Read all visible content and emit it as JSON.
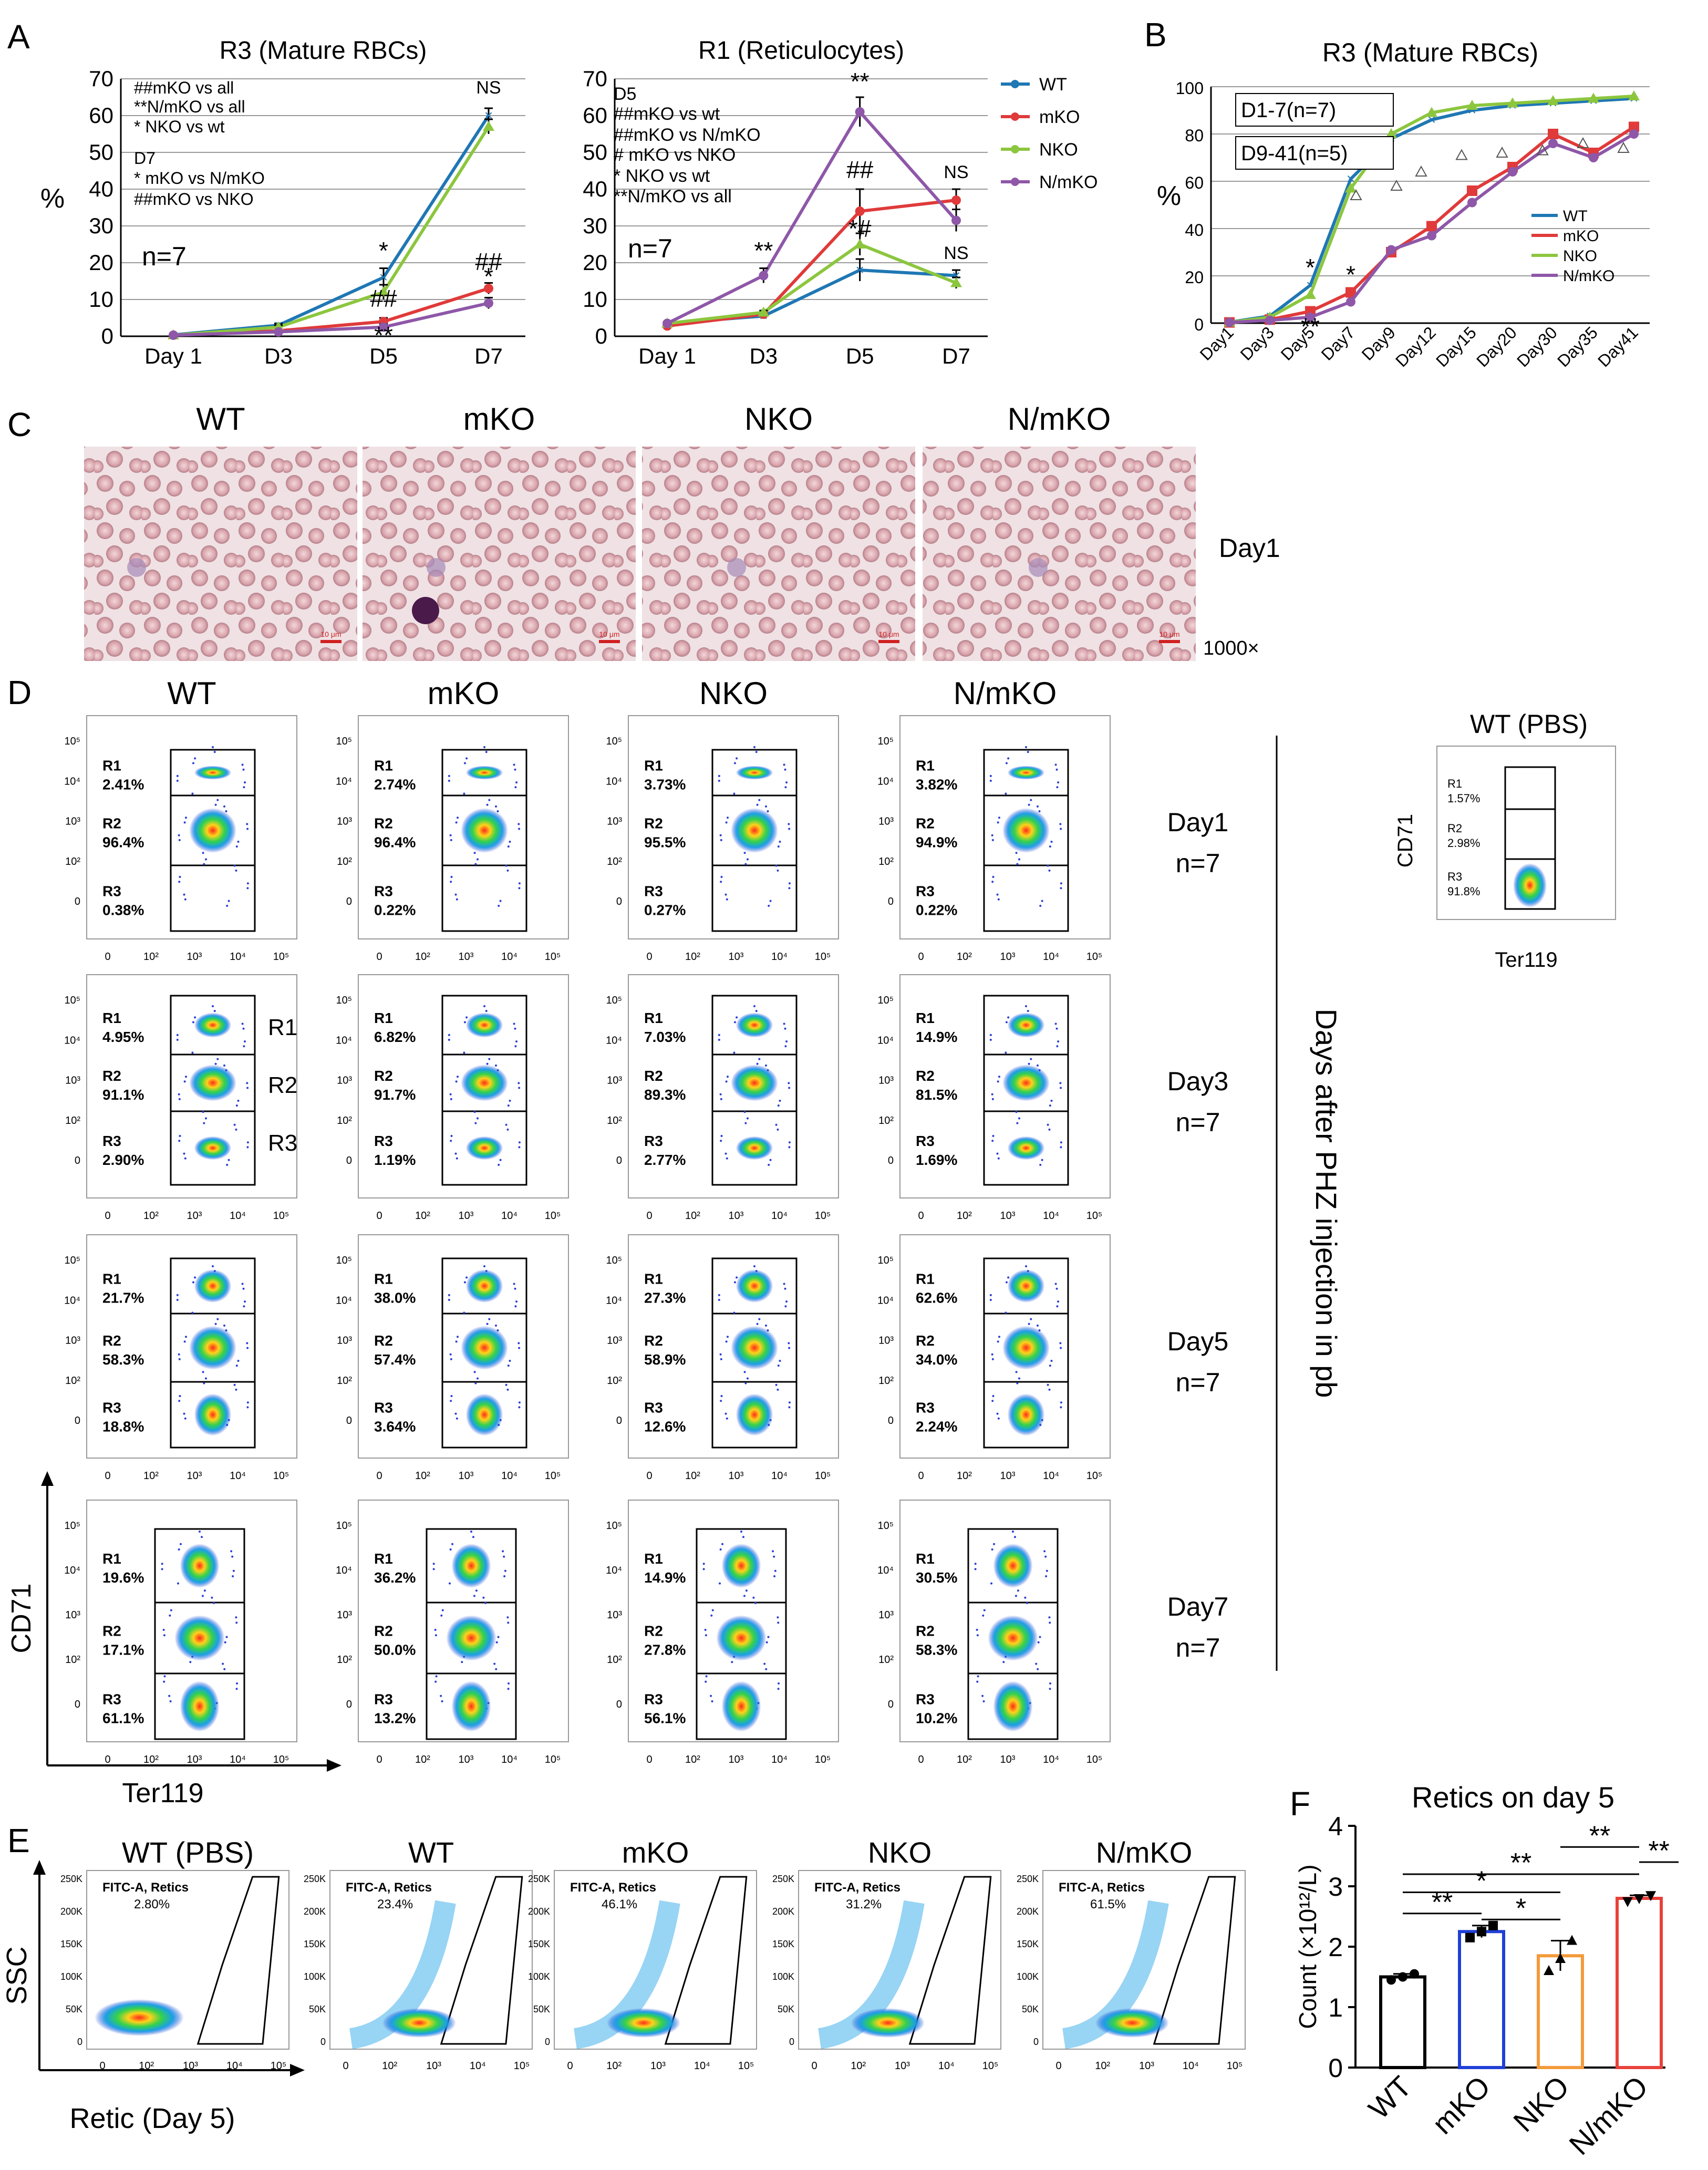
{
  "panel_labels": [
    "A",
    "B",
    "C",
    "D",
    "E",
    "F"
  ],
  "series_colors": {
    "WT": "#1f77b4",
    "mKO": "#e03a3a",
    "NKO": "#8cc63e",
    "N/mKO": "#8e57a8"
  },
  "chart_data": [
    {
      "id": "A1",
      "type": "line",
      "title": "R3 (Mature RBCs)",
      "ylabel": "%",
      "categories": [
        "Day 1",
        "D3",
        "D5",
        "D7"
      ],
      "yticks": [
        "0",
        "10",
        "20",
        "30",
        "40",
        "50",
        "60",
        "70"
      ],
      "ylim": [
        0,
        70
      ],
      "n_label": "n=7",
      "series": [
        {
          "name": "WT",
          "values": [
            0.4,
            3,
            16,
            60
          ],
          "err": [
            0.2,
            0.5,
            2.5,
            2
          ]
        },
        {
          "name": "mKO",
          "values": [
            0.3,
            1.5,
            4,
            13
          ],
          "err": [
            0.2,
            0.4,
            1,
            1.5
          ]
        },
        {
          "name": "NKO",
          "values": [
            0.3,
            2.5,
            12,
            57
          ],
          "err": [
            0.2,
            0.5,
            2,
            2
          ]
        },
        {
          "name": "N/mKO",
          "values": [
            0.3,
            1.2,
            2.5,
            9
          ],
          "err": [
            0.2,
            0.3,
            0.8,
            1.5
          ]
        }
      ],
      "annotations": [
        "##mKO vs all",
        "**N/mKO vs all",
        "* NKO vs wt",
        "D7",
        "* mKO vs N/mKO",
        "##mKO vs NKO"
      ],
      "point_marks": [
        {
          "text": "NS",
          "cat": 3,
          "y": 66
        },
        {
          "text": "*",
          "cat": 2,
          "y": 21
        },
        {
          "text": "##",
          "cat": 2,
          "y": 8
        },
        {
          "text": "**",
          "cat": 2,
          "y": -2
        },
        {
          "text": "##",
          "cat": 3,
          "y": 18
        },
        {
          "text": "*",
          "cat": 3,
          "y": 14
        }
      ]
    },
    {
      "id": "A2",
      "type": "line",
      "title": "R1 (Reticulocytes)",
      "ylabel": "",
      "categories": [
        "Day 1",
        "D3",
        "D5",
        "D7"
      ],
      "yticks": [
        "0",
        "10",
        "20",
        "30",
        "40",
        "50",
        "60",
        "70"
      ],
      "ylim": [
        0,
        70
      ],
      "n_label": "n=7",
      "series": [
        {
          "name": "WT",
          "values": [
            3.5,
            5.5,
            18,
            16.5
          ],
          "err": [
            0.4,
            0.5,
            3,
            1.5
          ]
        },
        {
          "name": "mKO",
          "values": [
            2.8,
            6,
            34,
            37
          ],
          "err": [
            0.4,
            0.5,
            6,
            3
          ]
        },
        {
          "name": "NKO",
          "values": [
            3.5,
            6.5,
            25,
            14.5
          ],
          "err": [
            0.4,
            0.5,
            3,
            1.5
          ]
        },
        {
          "name": "N/mKO",
          "values": [
            3.5,
            16.5,
            61,
            31.5
          ],
          "err": [
            0.4,
            2,
            4,
            3
          ]
        }
      ],
      "legend": [
        "WT",
        "mKO",
        "NKO",
        "N/mKO"
      ],
      "annotations": [
        "D5",
        "##mKO vs wt",
        "##mKO vs N/mKO",
        "# mKO vs NKO",
        "* NKO vs wt",
        "**N/mKO vs all"
      ],
      "point_marks": [
        {
          "text": "**",
          "cat": 2,
          "y": 67
        },
        {
          "text": "##",
          "cat": 2,
          "y": 43
        },
        {
          "text": "*#",
          "cat": 2,
          "y": 27
        },
        {
          "text": "**",
          "cat": 1,
          "y": 21
        },
        {
          "text": "NS",
          "cat": 3,
          "y": 43
        },
        {
          "text": "NS",
          "cat": 3,
          "y": 21
        }
      ]
    },
    {
      "id": "B",
      "type": "line",
      "title": "R3 (Mature RBCs)",
      "ylabel": "%",
      "categories": [
        "Day1",
        "Day3",
        "Day5",
        "Day7",
        "Day9",
        "Day12",
        "Day15",
        "Day20",
        "Day30",
        "Day35",
        "Day41"
      ],
      "yticks": [
        "0",
        "20",
        "40",
        "60",
        "80",
        "100"
      ],
      "ylim": [
        0,
        100
      ],
      "boxes": [
        "D1-7(n=7)",
        "D9-41(n=5)"
      ],
      "legend": [
        "WT",
        "mKO",
        "NKO",
        "N/mKO"
      ],
      "series": [
        {
          "name": "WT",
          "values": [
            0.4,
            3,
            16,
            61,
            78,
            86,
            90,
            92,
            93,
            94,
            95
          ]
        },
        {
          "name": "mKO",
          "values": [
            0.3,
            1.5,
            5,
            13,
            30,
            41,
            56,
            66,
            80,
            72,
            83
          ]
        },
        {
          "name": "NKO",
          "values": [
            0.3,
            2.5,
            12,
            57,
            80,
            89,
            92,
            93,
            94,
            95,
            96
          ]
        },
        {
          "name": "N/mKO",
          "values": [
            0.3,
            1.2,
            2.5,
            9,
            31,
            37,
            51,
            64,
            76,
            70,
            80
          ]
        }
      ],
      "point_marks": [
        {
          "text": "*",
          "cat": 2,
          "y": 20
        },
        {
          "text": "**",
          "cat": 2,
          "y": -5
        },
        {
          "text": "*",
          "cat": 3,
          "y": 17
        }
      ]
    },
    {
      "id": "F",
      "type": "bar",
      "title": "Retics on day 5",
      "ylabel": "Count (×10¹²/L)",
      "categories": [
        "WT",
        "mKO",
        "NKO",
        "N/mKO"
      ],
      "values": [
        1.5,
        2.25,
        1.85,
        2.8
      ],
      "err": [
        0.05,
        0.1,
        0.25,
        0.05
      ],
      "points": [
        [
          1.45,
          1.5,
          1.55
        ],
        [
          2.15,
          2.25,
          2.35
        ],
        [
          1.6,
          1.8,
          2.1
        ],
        [
          2.75,
          2.8,
          2.85
        ]
      ],
      "colors": [
        "#000000",
        "#1f3fd6",
        "#f39a3a",
        "#e8413a"
      ],
      "yticks": [
        "0",
        "1",
        "2",
        "3",
        "4"
      ],
      "ylim": [
        0,
        4
      ],
      "significance": [
        {
          "from": 2,
          "to": 3,
          "label": "**",
          "level": 3.65
        },
        {
          "from": 3,
          "to": 3.5,
          "label": "**",
          "level": 3.4
        },
        {
          "from": 0,
          "to": 3,
          "label": "**",
          "level": 3.2
        },
        {
          "from": 0,
          "to": 2,
          "label": "*",
          "level": 2.9
        },
        {
          "from": 0,
          "to": 1,
          "label": "**",
          "level": 2.55
        },
        {
          "from": 1,
          "to": 2,
          "label": "*",
          "level": 2.45
        }
      ]
    }
  ],
  "panelC": {
    "labels": [
      "WT",
      "mKO",
      "NKO",
      "N/mKO"
    ],
    "day": "Day1",
    "magnification": "1000×",
    "scalebar": "10 μm"
  },
  "panelD": {
    "column_labels": [
      "WT",
      "mKO",
      "NKO",
      "N/mKO"
    ],
    "row_labels": [
      {
        "day": "Day1",
        "n": "n=7"
      },
      {
        "day": "Day3",
        "n": "n=7"
      },
      {
        "day": "Day5",
        "n": "n=7"
      },
      {
        "day": "Day7",
        "n": "n=7"
      }
    ],
    "rows": [
      [
        [
          "2.41%",
          "96.4%",
          "0.38%"
        ],
        [
          "2.74%",
          "96.4%",
          "0.22%"
        ],
        [
          "3.73%",
          "95.5%",
          "0.27%"
        ],
        [
          "3.82%",
          "94.9%",
          "0.22%"
        ]
      ],
      [
        [
          "4.95%",
          "91.1%",
          "2.90%"
        ],
        [
          "6.82%",
          "91.7%",
          "1.19%"
        ],
        [
          "7.03%",
          "89.3%",
          "2.77%"
        ],
        [
          "14.9%",
          "81.5%",
          "1.69%"
        ]
      ],
      [
        [
          "21.7%",
          "58.3%",
          "18.8%"
        ],
        [
          "38.0%",
          "57.4%",
          "3.64%"
        ],
        [
          "27.3%",
          "58.9%",
          "12.6%"
        ],
        [
          "62.6%",
          "34.0%",
          "2.24%"
        ]
      ],
      [
        [
          "19.6%",
          "17.1%",
          "61.1%"
        ],
        [
          "36.2%",
          "50.0%",
          "13.2%"
        ],
        [
          "14.9%",
          "27.8%",
          "56.1%"
        ],
        [
          "30.5%",
          "58.3%",
          "10.2%"
        ]
      ]
    ],
    "gate_names": [
      "R1",
      "R2",
      "R3"
    ],
    "x_axis": "Ter119",
    "y_axis": "CD71",
    "x_ticks": [
      "0",
      "10²",
      "10³",
      "10⁴",
      "10⁵"
    ],
    "y_ticks": [
      "10⁵",
      "10⁴",
      "10³",
      "10²",
      "0"
    ],
    "side_label": "Days after PHZ injection in pb",
    "pbs": {
      "title": "WT (PBS)",
      "values": [
        "1.57%",
        "2.98%",
        "91.8%"
      ]
    }
  },
  "panelE": {
    "titles": [
      "WT (PBS)",
      "WT",
      "mKO",
      "NKO",
      "N/mKO"
    ],
    "gate_label": "FITC-A, Retics",
    "values": [
      "2.80%",
      "23.4%",
      "46.1%",
      "31.2%",
      "61.5%"
    ],
    "y_axis": "SSC",
    "x_axis": "Retic (Day 5)",
    "y_ticks": [
      "250K",
      "200K",
      "150K",
      "100K",
      "50K",
      "0"
    ],
    "x_ticks": [
      "0",
      "10²",
      "10³",
      "10⁴",
      "10⁵"
    ]
  }
}
